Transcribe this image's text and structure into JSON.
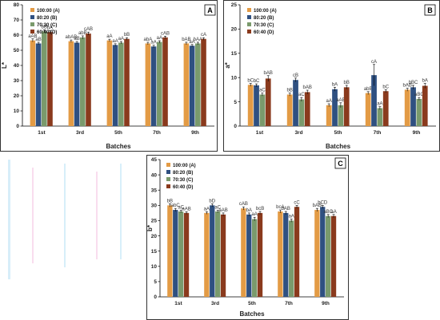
{
  "chart_data": [
    {
      "type": "bar",
      "panel": "A",
      "xlabel": "Batches",
      "ylabel": "L*",
      "ylim": [
        0,
        80
      ],
      "yticks": [
        0,
        10,
        20,
        30,
        40,
        50,
        60,
        70,
        80
      ],
      "categories": [
        "1st",
        "3rd",
        "5th",
        "7th",
        "9th"
      ],
      "legend_position": "top-left",
      "series": [
        {
          "name": "100:00 (A)",
          "color": "#e39b45",
          "values": [
            56.5,
            56.0,
            56.5,
            54.5,
            54.5
          ],
          "errors": [
            1.0,
            0.8,
            0.8,
            0.8,
            0.8
          ],
          "letters": [
            "aAB",
            "abAB",
            "aA",
            "abA",
            "bAB"
          ]
        },
        {
          "name": "80:20 (B)",
          "color": "#2f5081",
          "values": [
            54.5,
            55.0,
            53.5,
            52.5,
            53.0
          ],
          "errors": [
            0.8,
            0.8,
            0.8,
            0.8,
            0.8
          ],
          "letters": [
            "aB",
            "aB",
            "aA",
            "aA",
            "aA"
          ]
        },
        {
          "name": "70:30 (C)",
          "color": "#7a9a6c",
          "values": [
            62.5,
            58.5,
            55.0,
            55.5,
            54.5
          ],
          "errors": [
            1.0,
            1.0,
            0.8,
            0.8,
            0.8
          ],
          "letters": [
            "bB",
            "abB",
            "aA",
            "aA",
            "bAA"
          ]
        },
        {
          "name": "60:40 (D)",
          "color": "#8a3a1d",
          "values": [
            62.0,
            61.0,
            57.5,
            58.5,
            57.5
          ],
          "errors": [
            1.0,
            1.0,
            0.8,
            0.8,
            0.8
          ],
          "letters": [
            "bA",
            "cAB",
            "bB",
            "cAB",
            "cA"
          ]
        }
      ]
    },
    {
      "type": "bar",
      "panel": "B",
      "xlabel": "Batches",
      "ylabel": "a*",
      "ylim": [
        0,
        25
      ],
      "yticks": [
        0,
        5,
        10,
        15,
        20,
        25
      ],
      "categories": [
        "1st",
        "3rd",
        "5th",
        "7th",
        "9th"
      ],
      "legend_position": "top-left",
      "series": [
        {
          "name": "100:00 (A)",
          "color": "#e39b45",
          "values": [
            8.5,
            6.5,
            4.3,
            6.8,
            7.5
          ],
          "errors": [
            0.3,
            0.3,
            0.3,
            0.3,
            0.3
          ],
          "letters": [
            "bC",
            "bB",
            "aA",
            "abB",
            "bAB"
          ]
        },
        {
          "name": "80:20 (B)",
          "color": "#2f5081",
          "values": [
            8.4,
            9.5,
            7.6,
            10.5,
            8.0
          ],
          "errors": [
            0.3,
            0.4,
            0.4,
            2.2,
            0.4
          ],
          "letters": [
            "bC",
            "cB",
            "bA",
            "cA",
            "bBC"
          ]
        },
        {
          "name": "70:30 (C)",
          "color": "#7a9a6c",
          "values": [
            6.5,
            5.5,
            4.3,
            3.7,
            5.6
          ],
          "errors": [
            0.3,
            0.4,
            0.5,
            0.3,
            0.3
          ],
          "letters": [
            "aC",
            "aC",
            "aAB",
            "aA",
            "aBC"
          ]
        },
        {
          "name": "60:40 (D)",
          "color": "#8a3a1d",
          "values": [
            9.8,
            7.0,
            8.0,
            7.2,
            8.3
          ],
          "errors": [
            0.6,
            0.4,
            0.4,
            0.3,
            0.5
          ],
          "letters": [
            "bAB",
            "bAB",
            "bB",
            "bC",
            "bA"
          ]
        }
      ]
    },
    {
      "type": "bar",
      "panel": "C",
      "xlabel": "Batches",
      "ylabel": "b*",
      "ylim": [
        0,
        45
      ],
      "yticks": [
        0,
        5,
        10,
        15,
        20,
        25,
        30,
        35,
        40,
        45
      ],
      "categories": [
        "1st",
        "3rd",
        "5th",
        "7th",
        "9th"
      ],
      "legend_position": "top-left",
      "series": [
        {
          "name": "100:00 (A)",
          "color": "#e39b45",
          "values": [
            30.0,
            27.5,
            29.0,
            28.0,
            28.5
          ],
          "errors": [
            0.5,
            0.4,
            0.5,
            0.5,
            0.5
          ],
          "letters": [
            "bB",
            "aA",
            "cAB",
            "bcA",
            "bAB"
          ]
        },
        {
          "name": "80:20 (B)",
          "color": "#2f5081",
          "values": [
            28.5,
            30.0,
            27.0,
            27.5,
            29.5
          ],
          "errors": [
            0.5,
            0.5,
            0.5,
            0.5,
            0.5
          ],
          "letters": [
            "abC",
            "bD",
            "bA",
            "bAB",
            "bCD"
          ]
        },
        {
          "name": "70:30 (C)",
          "color": "#7a9a6c",
          "values": [
            28.0,
            28.0,
            25.5,
            25.0,
            26.5
          ],
          "errors": [
            0.4,
            0.4,
            0.6,
            0.5,
            0.5
          ],
          "letters": [
            "aC",
            "aC",
            "aA",
            "aA",
            "aBC"
          ]
        },
        {
          "name": "60:40 (D)",
          "color": "#8a3a1d",
          "values": [
            27.5,
            27.0,
            27.5,
            29.5,
            26.5
          ],
          "errors": [
            0.4,
            0.5,
            0.5,
            0.5,
            0.5
          ],
          "letters": [
            "aAB",
            "aAB",
            "bcB",
            "cC",
            "aA"
          ]
        }
      ]
    }
  ]
}
